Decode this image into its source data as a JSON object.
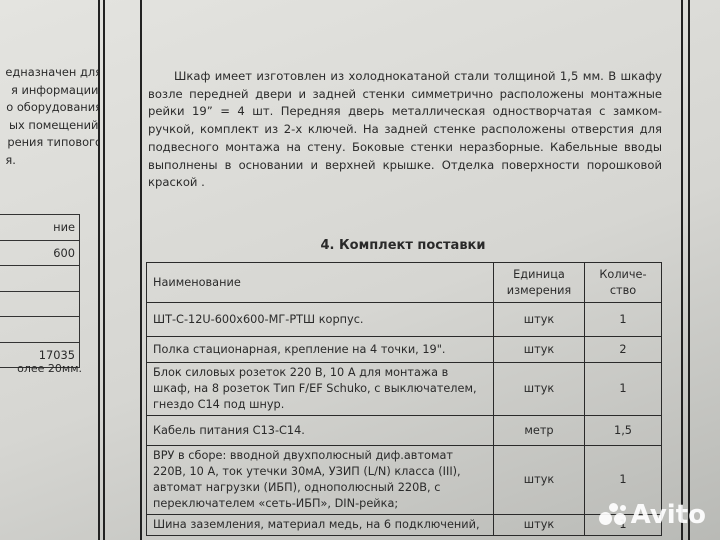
{
  "left_page": {
    "text_lines": [
      "едназначен для",
      "я информации,",
      "о оборудования",
      "ых помещений.",
      "рения типового",
      "я."
    ],
    "table_cells": [
      "ние",
      "600",
      "",
      "",
      "",
      "17035"
    ],
    "note": "олее 20мм."
  },
  "description": "Шкаф имеет изготовлен из холоднокатаной стали толщиной 1,5 мм. В шкафу возле передней двери и задней стенки симметрично расположены монтажные рейки 19” = 4 шт. Передняя дверь металлическая одностворчатая с замком-ручкой, комплект из 2-х ключей. На задней стенке расположены отверстия для подвесного монтажа на стену. Боковые стенки неразборные.  Кабельные вводы выполнены в основании и верхней крышке. Отделка поверхности порошковой краской .",
  "section_title": "4. Комплект поставки",
  "table": {
    "headers": [
      "Наименование",
      "Единица измерения",
      "Количе-ство"
    ],
    "rows": [
      {
        "name": "ШТ-С-12U-600х600-МГ-РТШ  корпус.",
        "unit": "штук",
        "qty": "1"
      },
      {
        "name": "Полка стационарная, крепление на 4 точки, 19\".",
        "unit": "штук",
        "qty": "2"
      },
      {
        "name": "Блок силовых розеток 220 В, 10 А для монтажа в шкаф, на 8 розеток Тип F/EF Schuko, с выключателем, гнездо С14 под шнур.",
        "unit": "штук",
        "qty": "1"
      },
      {
        "name": "Кабель питания С13-С14.",
        "unit": "метр",
        "qty": "1,5"
      },
      {
        "name": "ВРУ в сборе: вводной двухполюсный диф.автомат 220В, 10 А, ток утечки 30мА, УЗИП (L/N) класса (III), автомат нагрузки (ИБП), однополюсный 220В, с переключателем «сеть-ИБП», DIN-рейка;",
        "unit": "штук",
        "qty": "1"
      },
      {
        "name": "Шина заземления, материал медь, на 6 подключений,",
        "unit": "штук",
        "qty": "1"
      }
    ]
  },
  "watermark": "Avito"
}
